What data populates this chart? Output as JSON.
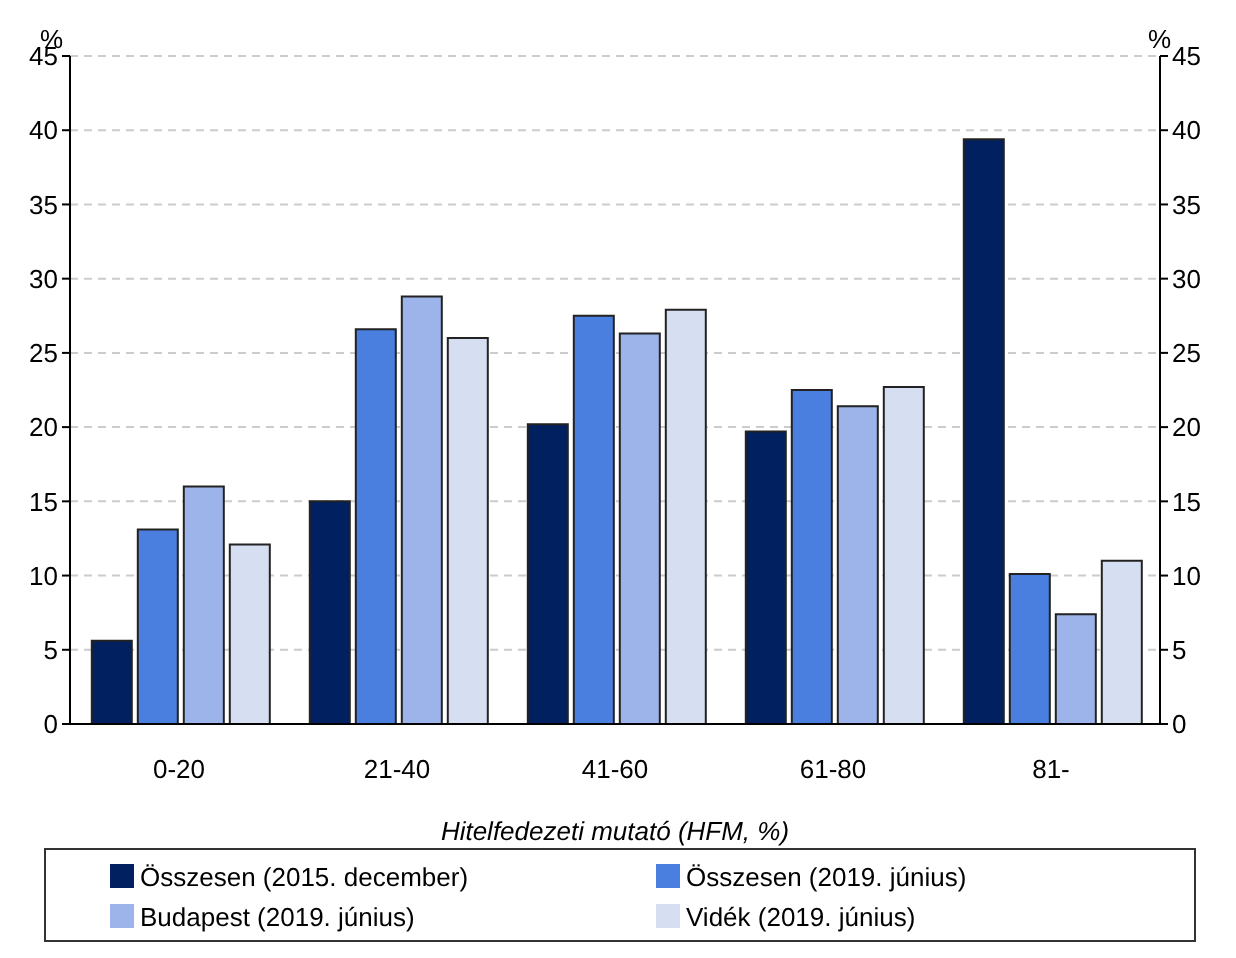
{
  "chart_data": {
    "type": "bar",
    "categories": [
      "0-20",
      "21-40",
      "41-60",
      "61-80",
      "81-"
    ],
    "series": [
      {
        "name": "Összesen (2015. december)",
        "color": "#002060",
        "values": [
          5.6,
          15.0,
          20.2,
          19.7,
          39.4
        ]
      },
      {
        "name": "Összesen (2019. június)",
        "color": "#4a7fe0",
        "values": [
          13.1,
          26.6,
          27.5,
          22.5,
          10.1
        ]
      },
      {
        "name": "Budapest (2019. június)",
        "color": "#9db4ea",
        "values": [
          16.0,
          28.8,
          26.3,
          21.4,
          7.4
        ]
      },
      {
        "name": "Vidék (2019. június)",
        "color": "#d6dff2",
        "values": [
          12.1,
          26.0,
          27.9,
          22.7,
          11.0
        ]
      }
    ],
    "xlabel": "Hitelfedezeti mutató (HFM, %)",
    "ylabel": "%",
    "y2label": "%",
    "ylim": [
      0,
      45
    ],
    "yticks": [
      0,
      5,
      10,
      15,
      20,
      25,
      30,
      35,
      40,
      45
    ],
    "y2lim": [
      0,
      45
    ],
    "y2ticks": [
      0,
      5,
      10,
      15,
      20,
      25,
      30,
      35,
      40,
      45
    ],
    "grid": "y",
    "legend": "bottom"
  }
}
